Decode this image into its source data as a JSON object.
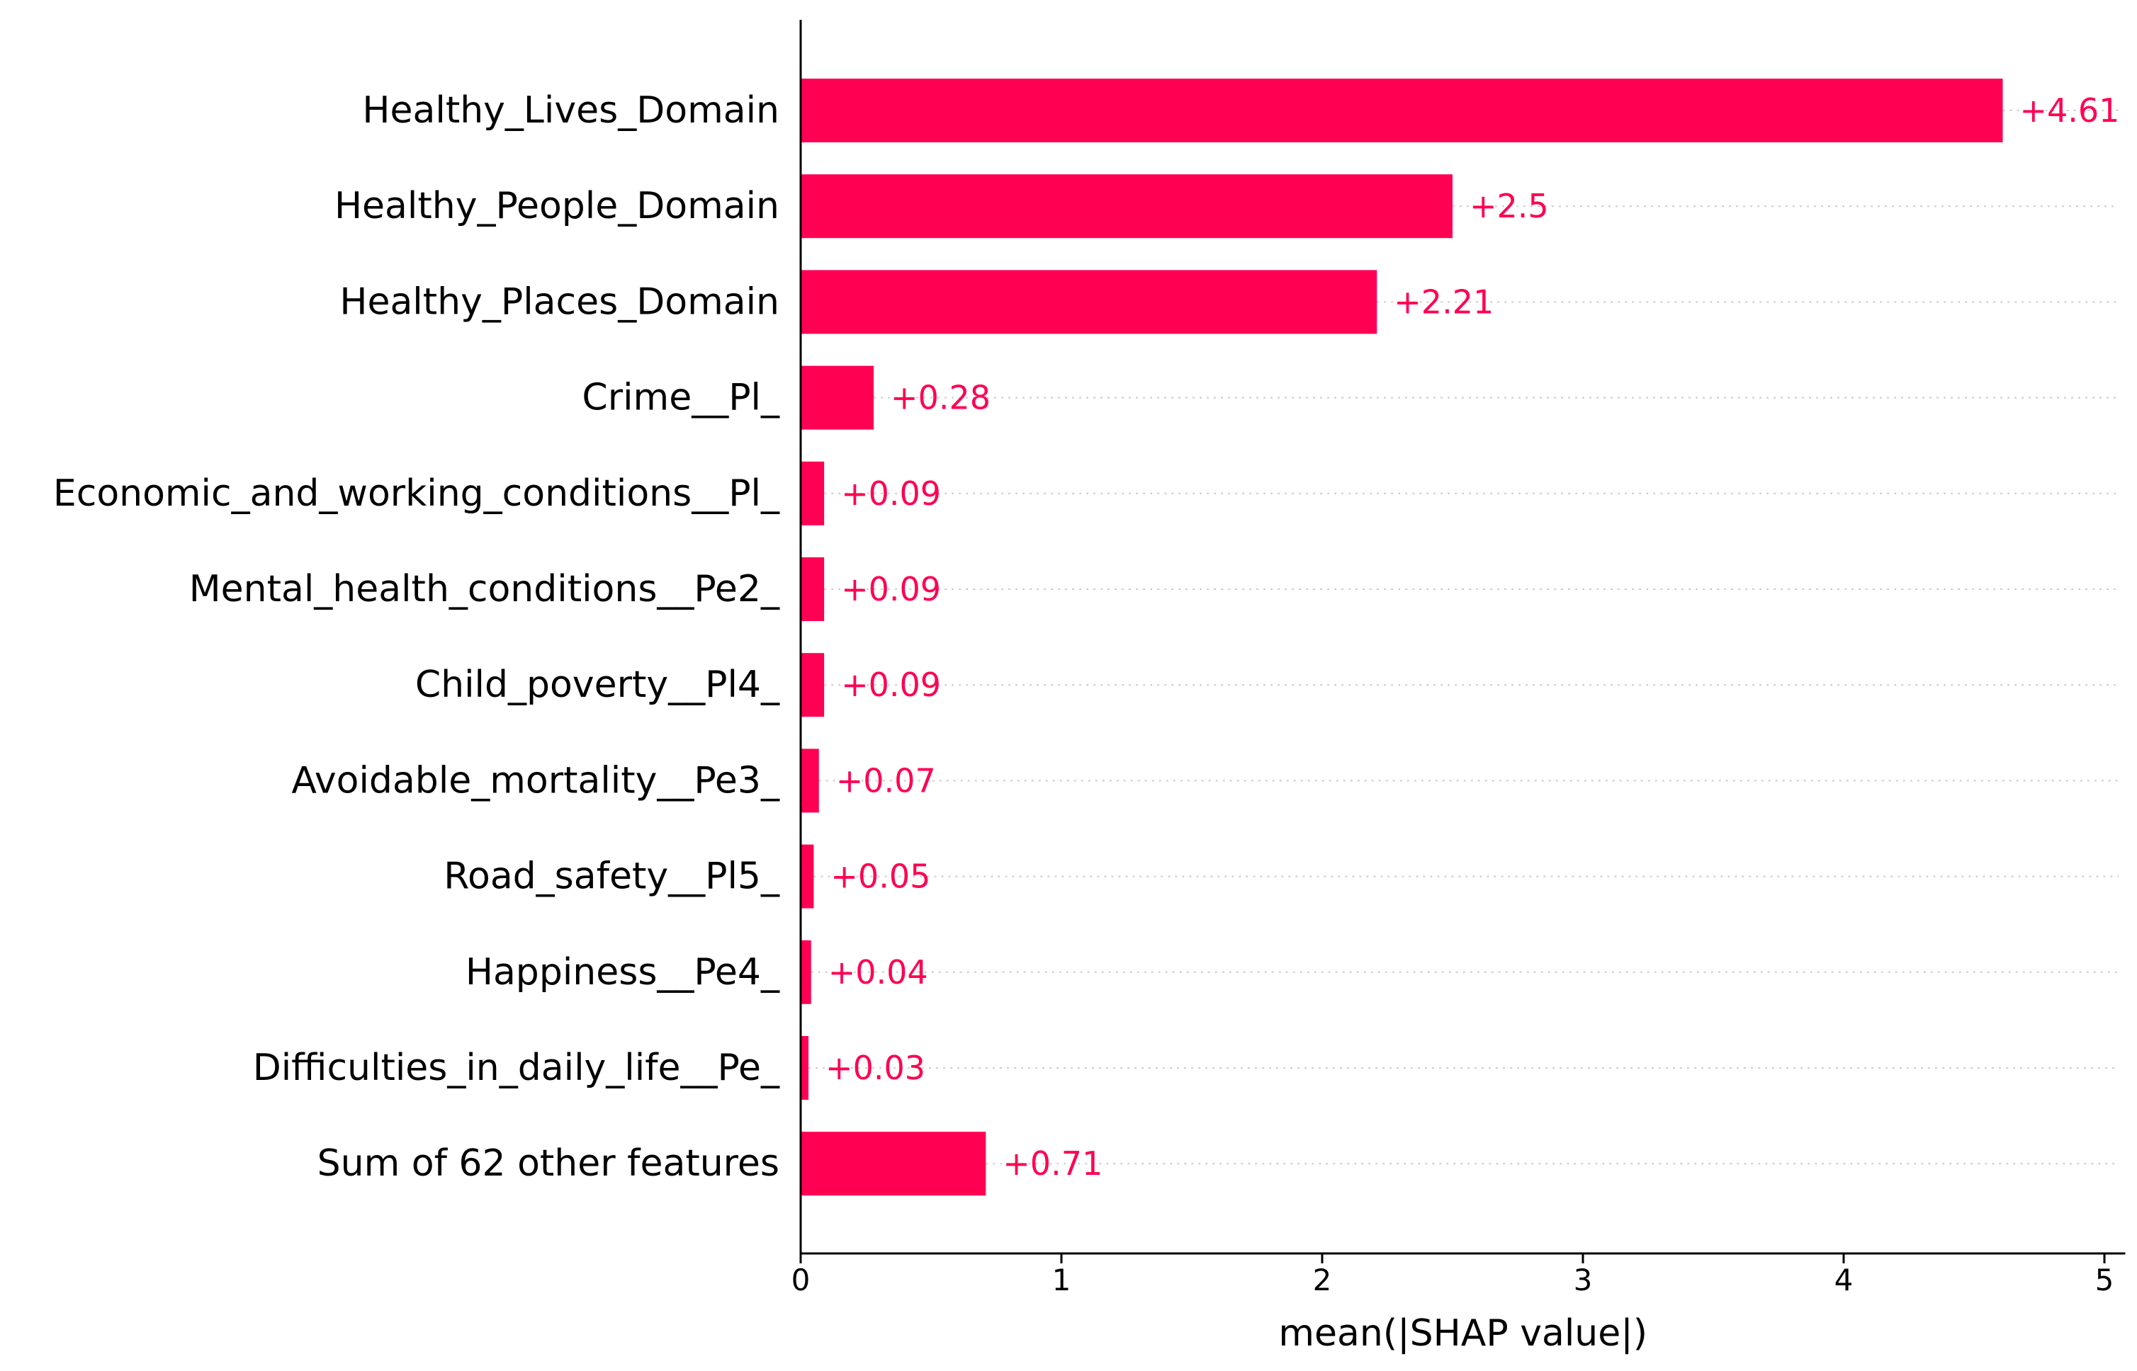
{
  "colors": {
    "bar": "#ff0052",
    "axis": "#000000",
    "guide": "#cccccc"
  },
  "chart_data": {
    "type": "bar",
    "orientation": "horizontal",
    "categories": [
      "Healthy_Lives_Domain",
      "Healthy_People_Domain",
      "Healthy_Places_Domain",
      "Crime__Pl_",
      "Economic_and_working_conditions__Pl_",
      "Mental_health_conditions__Pe2_",
      "Child_poverty__Pl4_",
      "Avoidable_mortality__Pe3_",
      "Road_safety__Pl5_",
      "Happiness__Pe4_",
      "Difficulties_in_daily_life__Pe_",
      "Sum of 62 other features"
    ],
    "values": [
      4.61,
      2.5,
      2.21,
      0.28,
      0.09,
      0.09,
      0.09,
      0.07,
      0.05,
      0.04,
      0.03,
      0.71
    ],
    "value_labels": [
      "+4.61",
      "+2.5",
      "+2.21",
      "+0.28",
      "+0.09",
      "+0.09",
      "+0.09",
      "+0.07",
      "+0.05",
      "+0.04",
      "+0.03",
      "+0.71"
    ],
    "xlabel": "mean(|SHAP value|)",
    "ylabel": "",
    "title": "",
    "xlim": [
      0,
      5.08
    ],
    "xticks": [
      0,
      1,
      2,
      3,
      4,
      5
    ],
    "grid": false,
    "dotted_guides": true
  }
}
